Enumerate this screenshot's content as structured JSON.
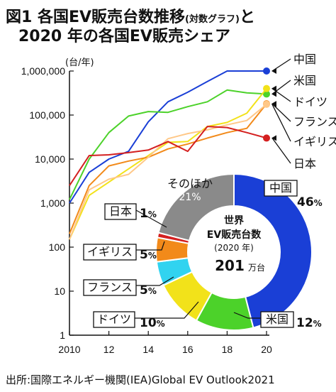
{
  "title": {
    "line1": "図1 各国EV販売台数推移",
    "line1_sub": "(対数グラフ)",
    "line1_end": "と",
    "line2": "2020 年の各国EV販売シェア"
  },
  "source": "出所:国際エネルギー機関(IEA)Global EV Outlook2021",
  "chart_data": [
    {
      "type": "line",
      "yscale": "log",
      "ylabel": "(台/年)",
      "ylim": [
        1,
        1000000
      ],
      "xlim": [
        2010,
        2020
      ],
      "yticks": [
        {
          "value": 1000000,
          "label": "1,000,000"
        },
        {
          "value": 100000,
          "label": "100,000"
        },
        {
          "value": 10000,
          "label": "10,000"
        },
        {
          "value": 1000,
          "label": "1,000"
        },
        {
          "value": 100,
          "label": "100"
        },
        {
          "value": 10,
          "label": "10"
        },
        {
          "value": 1,
          "label": "1"
        }
      ],
      "xticks": [
        {
          "value": 2010,
          "label": "2010"
        },
        {
          "value": 2012,
          "label": "12"
        },
        {
          "value": 2014,
          "label": "14"
        },
        {
          "value": 2016,
          "label": "16"
        },
        {
          "value": 2018,
          "label": "18"
        },
        {
          "value": 2020,
          "label": "20"
        }
      ],
      "x": [
        2010,
        2011,
        2012,
        2013,
        2014,
        2015,
        2016,
        2017,
        2018,
        2019,
        2020
      ],
      "series": [
        {
          "name": "中国",
          "color": "#1a3fd6",
          "values": [
            1000,
            5000,
            10000,
            15000,
            70000,
            200000,
            330000,
            580000,
            1100000,
            1100000,
            1150000
          ]
        },
        {
          "name": "米国",
          "color": "#4cd22a",
          "values": [
            1200,
            10000,
            40000,
            95000,
            120000,
            115000,
            155000,
            200000,
            370000,
            320000,
            300000
          ]
        },
        {
          "name": "ドイツ",
          "color": "#f2e21a",
          "values": [
            150,
            1500,
            3000,
            6000,
            12000,
            24000,
            25000,
            55000,
            68000,
            110000,
            400000
          ]
        },
        {
          "name": "フランス",
          "color": "#f28a1a",
          "values": [
            200,
            2500,
            7000,
            9000,
            11000,
            17000,
            22000,
            30000,
            40000,
            50000,
            180000
          ]
        },
        {
          "name": "イギリス",
          "color": "#ffc888",
          "values": [
            150,
            2000,
            3500,
            4500,
            11000,
            29000,
            38000,
            46000,
            60000,
            75000,
            175000
          ]
        },
        {
          "name": "日本",
          "color": "#d42020",
          "values": [
            2500,
            12000,
            12500,
            14000,
            16000,
            25000,
            15000,
            55000,
            52000,
            40000,
            30000
          ]
        }
      ]
    },
    {
      "type": "pie",
      "title": "世界 EV販売台数",
      "subtitle": "(2020 年)",
      "total": "201",
      "total_unit": "万台",
      "slices": [
        {
          "label": "中国",
          "value": 46,
          "pct": "46",
          "color": "#1a3fd6"
        },
        {
          "label": "米国",
          "value": 12,
          "pct": "12",
          "color": "#4cd22a"
        },
        {
          "label": "ドイツ",
          "value": 10,
          "pct": "10",
          "color": "#f2e21a"
        },
        {
          "label": "フランス",
          "value": 5,
          "pct": "5",
          "color": "#31d3f0"
        },
        {
          "label": "イギリス",
          "value": 5,
          "pct": "5",
          "color": "#f28a1a"
        },
        {
          "label": "日本",
          "value": 1,
          "pct": "1",
          "color": "#d42020"
        },
        {
          "label": "そのほか",
          "value": 21,
          "pct": "21",
          "color": "#8a8a8a"
        }
      ],
      "pct_unit": "%"
    }
  ]
}
